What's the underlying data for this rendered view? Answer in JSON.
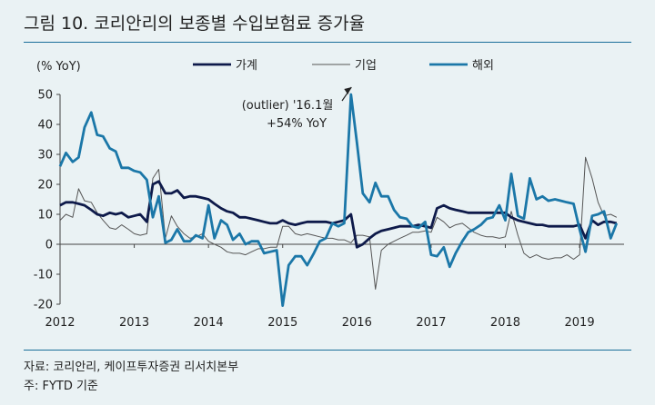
{
  "title": "그림 10.  코리안리의 보종별 수입보험료 증가율",
  "source": "자료: 코리안리, 케이프투자증권 리서치본부",
  "note": "주: FYTD 기준",
  "colors": {
    "household": "#0e1a4a",
    "corporate": "#555555",
    "overseas": "#1b77a8"
  },
  "chart_data": {
    "type": "line",
    "ylabel": "(% YoY)",
    "ylim": [
      -20,
      50
    ],
    "yticks": [
      -20,
      -10,
      0,
      10,
      20,
      30,
      40,
      50
    ],
    "xlim": [
      2012,
      2019.6
    ],
    "xticks": [
      2012,
      2013,
      2014,
      2015,
      2016,
      2017,
      2018,
      2019
    ],
    "xtick_labels": [
      "2012",
      "2013",
      "2014",
      "2015",
      "2016",
      "2017",
      "2018",
      "2019"
    ],
    "legend_position": "top",
    "grid": false,
    "annotation": {
      "lines": [
        "(outlier) '16.1월",
        "+54% YoY"
      ],
      "x": 2016.0,
      "y": 50
    },
    "series": [
      {
        "name": "가계",
        "points": [
          [
            2012.0,
            13
          ],
          [
            2012.08,
            14
          ],
          [
            2012.17,
            14
          ],
          [
            2012.25,
            13.5
          ],
          [
            2012.33,
            13
          ],
          [
            2012.42,
            11.5
          ],
          [
            2012.5,
            10
          ],
          [
            2012.58,
            9.5
          ],
          [
            2012.67,
            10.5
          ],
          [
            2012.75,
            10
          ],
          [
            2012.83,
            10.5
          ],
          [
            2012.92,
            9
          ],
          [
            2013.0,
            9.5
          ],
          [
            2013.08,
            10
          ],
          [
            2013.17,
            7.5
          ],
          [
            2013.25,
            20
          ],
          [
            2013.33,
            21
          ],
          [
            2013.42,
            17
          ],
          [
            2013.5,
            17
          ],
          [
            2013.58,
            18
          ],
          [
            2013.67,
            15.5
          ],
          [
            2013.75,
            16
          ],
          [
            2013.83,
            16
          ],
          [
            2013.92,
            15.5
          ],
          [
            2014.0,
            15
          ],
          [
            2014.08,
            13.5
          ],
          [
            2014.17,
            12
          ],
          [
            2014.25,
            11
          ],
          [
            2014.33,
            10.5
          ],
          [
            2014.42,
            9
          ],
          [
            2014.5,
            9
          ],
          [
            2014.58,
            8.5
          ],
          [
            2014.67,
            8
          ],
          [
            2014.75,
            7.5
          ],
          [
            2014.83,
            7
          ],
          [
            2014.92,
            7
          ],
          [
            2015.0,
            8
          ],
          [
            2015.08,
            7
          ],
          [
            2015.17,
            6.5
          ],
          [
            2015.25,
            7
          ],
          [
            2015.33,
            7.5
          ],
          [
            2015.42,
            7.5
          ],
          [
            2015.5,
            7.5
          ],
          [
            2015.58,
            7.5
          ],
          [
            2015.67,
            7
          ],
          [
            2015.75,
            7.5
          ],
          [
            2015.83,
            8
          ],
          [
            2015.92,
            10
          ],
          [
            2016.0,
            -1
          ],
          [
            2016.08,
            0
          ],
          [
            2016.17,
            2
          ],
          [
            2016.25,
            3.5
          ],
          [
            2016.33,
            4.5
          ],
          [
            2016.42,
            5
          ],
          [
            2016.5,
            5.5
          ],
          [
            2016.58,
            6
          ],
          [
            2016.67,
            6
          ],
          [
            2016.75,
            6
          ],
          [
            2016.83,
            6.5
          ],
          [
            2016.92,
            6
          ],
          [
            2017.0,
            5.5
          ],
          [
            2017.08,
            12
          ],
          [
            2017.17,
            13
          ],
          [
            2017.25,
            12
          ],
          [
            2017.33,
            11.5
          ],
          [
            2017.42,
            11
          ],
          [
            2017.5,
            10.5
          ],
          [
            2017.58,
            10.5
          ],
          [
            2017.67,
            10.5
          ],
          [
            2017.75,
            10.5
          ],
          [
            2017.83,
            10.5
          ],
          [
            2017.92,
            10.5
          ],
          [
            2018.0,
            10.5
          ],
          [
            2018.08,
            9
          ],
          [
            2018.17,
            8
          ],
          [
            2018.25,
            7.5
          ],
          [
            2018.33,
            7
          ],
          [
            2018.42,
            6.5
          ],
          [
            2018.5,
            6.5
          ],
          [
            2018.58,
            6
          ],
          [
            2018.67,
            6
          ],
          [
            2018.75,
            6
          ],
          [
            2018.83,
            6
          ],
          [
            2018.92,
            6
          ],
          [
            2019.0,
            6.5
          ],
          [
            2019.08,
            2
          ],
          [
            2019.17,
            8
          ],
          [
            2019.25,
            6.5
          ],
          [
            2019.33,
            7.5
          ],
          [
            2019.42,
            7.5
          ],
          [
            2019.5,
            7
          ]
        ]
      },
      {
        "name": "기업",
        "points": [
          [
            2012.0,
            8
          ],
          [
            2012.08,
            10
          ],
          [
            2012.17,
            9
          ],
          [
            2012.25,
            18.5
          ],
          [
            2012.33,
            14.5
          ],
          [
            2012.42,
            14
          ],
          [
            2012.5,
            10.5
          ],
          [
            2012.58,
            8
          ],
          [
            2012.67,
            5.5
          ],
          [
            2012.75,
            5
          ],
          [
            2012.83,
            6.5
          ],
          [
            2012.92,
            5
          ],
          [
            2013.0,
            3.5
          ],
          [
            2013.08,
            3
          ],
          [
            2013.17,
            3.5
          ],
          [
            2013.25,
            22
          ],
          [
            2013.33,
            25
          ],
          [
            2013.42,
            2
          ],
          [
            2013.5,
            9.5
          ],
          [
            2013.58,
            6
          ],
          [
            2013.67,
            3.5
          ],
          [
            2013.75,
            2
          ],
          [
            2013.83,
            2.5
          ],
          [
            2013.92,
            3.5
          ],
          [
            2014.0,
            1
          ],
          [
            2014.08,
            0
          ],
          [
            2014.17,
            -1
          ],
          [
            2014.25,
            -2.5
          ],
          [
            2014.33,
            -3
          ],
          [
            2014.42,
            -3
          ],
          [
            2014.5,
            -3.5
          ],
          [
            2014.58,
            -2.5
          ],
          [
            2014.67,
            -1.5
          ],
          [
            2014.75,
            -1.5
          ],
          [
            2014.83,
            -1
          ],
          [
            2014.92,
            -1
          ],
          [
            2015.0,
            6
          ],
          [
            2015.08,
            6
          ],
          [
            2015.17,
            3.5
          ],
          [
            2015.25,
            3
          ],
          [
            2015.33,
            3.5
          ],
          [
            2015.42,
            3
          ],
          [
            2015.5,
            2.5
          ],
          [
            2015.58,
            2
          ],
          [
            2015.67,
            2
          ],
          [
            2015.75,
            1.5
          ],
          [
            2015.83,
            1.5
          ],
          [
            2015.92,
            0.5
          ],
          [
            2016.0,
            3
          ],
          [
            2016.08,
            3
          ],
          [
            2016.17,
            2.5
          ],
          [
            2016.25,
            -15
          ],
          [
            2016.33,
            -2
          ],
          [
            2016.42,
            0
          ],
          [
            2016.5,
            1
          ],
          [
            2016.58,
            2
          ],
          [
            2016.67,
            3
          ],
          [
            2016.75,
            4
          ],
          [
            2016.83,
            4
          ],
          [
            2016.92,
            4.5
          ],
          [
            2017.0,
            4
          ],
          [
            2017.08,
            9
          ],
          [
            2017.17,
            7.5
          ],
          [
            2017.25,
            5.5
          ],
          [
            2017.33,
            6.5
          ],
          [
            2017.42,
            7
          ],
          [
            2017.5,
            5.5
          ],
          [
            2017.58,
            4
          ],
          [
            2017.67,
            3
          ],
          [
            2017.75,
            2.5
          ],
          [
            2017.83,
            2.5
          ],
          [
            2017.92,
            2
          ],
          [
            2018.0,
            2.5
          ],
          [
            2018.08,
            11
          ],
          [
            2018.17,
            3
          ],
          [
            2018.25,
            -3
          ],
          [
            2018.33,
            -4.5
          ],
          [
            2018.42,
            -3.5
          ],
          [
            2018.5,
            -4.5
          ],
          [
            2018.58,
            -5
          ],
          [
            2018.67,
            -4.5
          ],
          [
            2018.75,
            -4.5
          ],
          [
            2018.83,
            -3.5
          ],
          [
            2018.92,
            -5
          ],
          [
            2019.0,
            -3.5
          ],
          [
            2019.08,
            29
          ],
          [
            2019.17,
            22
          ],
          [
            2019.25,
            14
          ],
          [
            2019.33,
            9.5
          ],
          [
            2019.42,
            10
          ],
          [
            2019.5,
            9
          ]
        ]
      },
      {
        "name": "해외",
        "points": [
          [
            2012.0,
            26
          ],
          [
            2012.08,
            30.5
          ],
          [
            2012.17,
            27.5
          ],
          [
            2012.25,
            29
          ],
          [
            2012.33,
            39
          ],
          [
            2012.42,
            44
          ],
          [
            2012.5,
            36.5
          ],
          [
            2012.58,
            36
          ],
          [
            2012.67,
            32
          ],
          [
            2012.75,
            31
          ],
          [
            2012.83,
            25.5
          ],
          [
            2012.92,
            25.5
          ],
          [
            2013.0,
            24.5
          ],
          [
            2013.08,
            24
          ],
          [
            2013.17,
            21.5
          ],
          [
            2013.25,
            9
          ],
          [
            2013.33,
            16
          ],
          [
            2013.42,
            0.5
          ],
          [
            2013.5,
            1.5
          ],
          [
            2013.58,
            5
          ],
          [
            2013.67,
            1
          ],
          [
            2013.75,
            1
          ],
          [
            2013.83,
            3
          ],
          [
            2013.92,
            2
          ],
          [
            2014.0,
            13
          ],
          [
            2014.08,
            2
          ],
          [
            2014.17,
            8
          ],
          [
            2014.25,
            6.5
          ],
          [
            2014.33,
            1.5
          ],
          [
            2014.42,
            3.5
          ],
          [
            2014.5,
            0
          ],
          [
            2014.58,
            1
          ],
          [
            2014.67,
            1
          ],
          [
            2014.75,
            -3
          ],
          [
            2014.83,
            -2.5
          ],
          [
            2014.92,
            -2
          ],
          [
            2015.0,
            -20.5
          ],
          [
            2015.08,
            -7
          ],
          [
            2015.17,
            -4
          ],
          [
            2015.25,
            -4
          ],
          [
            2015.33,
            -7
          ],
          [
            2015.42,
            -3
          ],
          [
            2015.5,
            1
          ],
          [
            2015.58,
            2
          ],
          [
            2015.67,
            7
          ],
          [
            2015.75,
            6
          ],
          [
            2015.83,
            7
          ],
          [
            2015.92,
            50
          ],
          [
            2016.0,
            34
          ],
          [
            2016.08,
            17
          ],
          [
            2016.17,
            14
          ],
          [
            2016.25,
            20.5
          ],
          [
            2016.33,
            16
          ],
          [
            2016.42,
            16
          ],
          [
            2016.5,
            11.5
          ],
          [
            2016.58,
            9
          ],
          [
            2016.67,
            8.5
          ],
          [
            2016.75,
            6
          ],
          [
            2016.83,
            5.5
          ],
          [
            2016.92,
            7.5
          ],
          [
            2017.0,
            -3.5
          ],
          [
            2017.08,
            -4
          ],
          [
            2017.17,
            -1
          ],
          [
            2017.25,
            -7.5
          ],
          [
            2017.33,
            -3
          ],
          [
            2017.42,
            1
          ],
          [
            2017.5,
            4
          ],
          [
            2017.58,
            5
          ],
          [
            2017.67,
            6.5
          ],
          [
            2017.75,
            8.5
          ],
          [
            2017.83,
            9
          ],
          [
            2017.92,
            13
          ],
          [
            2018.0,
            8
          ],
          [
            2018.08,
            23.5
          ],
          [
            2018.17,
            9.5
          ],
          [
            2018.25,
            8.5
          ],
          [
            2018.33,
            22
          ],
          [
            2018.42,
            15
          ],
          [
            2018.5,
            16
          ],
          [
            2018.58,
            14.5
          ],
          [
            2018.67,
            15
          ],
          [
            2018.75,
            14.5
          ],
          [
            2018.83,
            14
          ],
          [
            2018.92,
            13.5
          ],
          [
            2019.0,
            5
          ],
          [
            2019.08,
            -2.5
          ],
          [
            2019.17,
            9.5
          ],
          [
            2019.25,
            10
          ],
          [
            2019.33,
            11
          ],
          [
            2019.42,
            2
          ],
          [
            2019.5,
            7
          ]
        ]
      }
    ]
  }
}
